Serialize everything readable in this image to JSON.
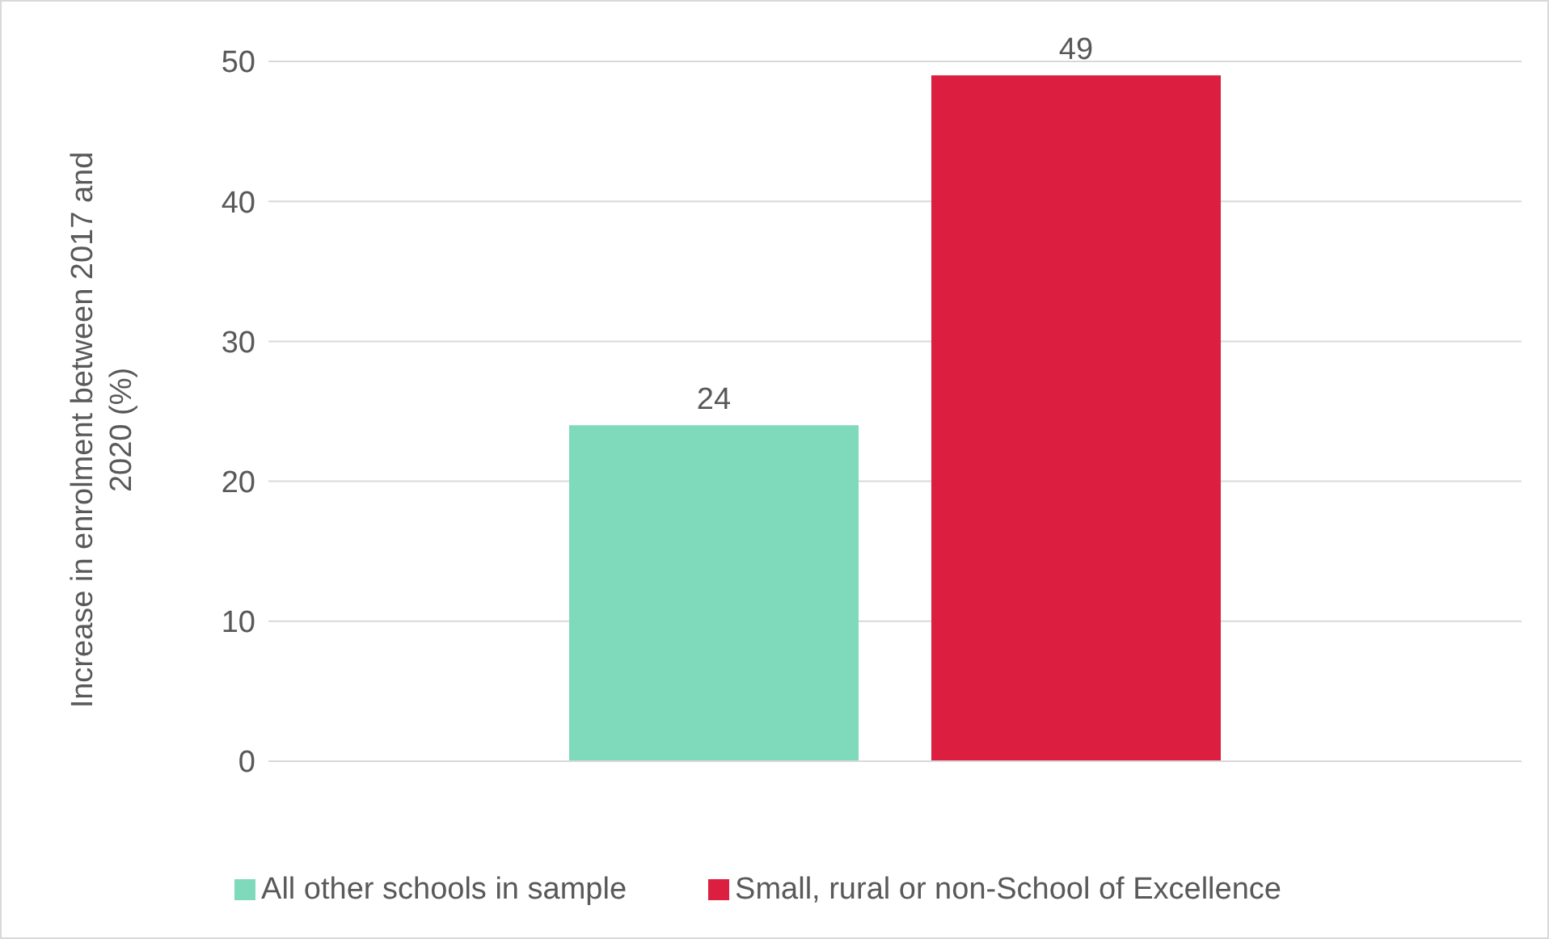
{
  "chart_data": {
    "type": "bar",
    "ylabel": "Increase in enrolment between 2017 and 2020 (%)",
    "categories": [
      null
    ],
    "series": [
      {
        "name": "All other schools in sample",
        "color": "#7fd9bb",
        "values": [
          24
        ]
      },
      {
        "name": "Small, rural or non-School of Excellence",
        "color": "#dc1f40",
        "values": [
          49
        ]
      }
    ],
    "ylim": [
      0,
      50
    ],
    "yticks": [
      0,
      10,
      20,
      30,
      40,
      50
    ],
    "grid": "y",
    "legend": "bottom",
    "data_labels": true
  }
}
